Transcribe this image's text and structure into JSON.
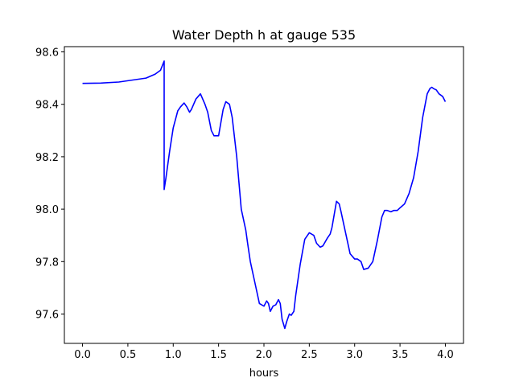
{
  "chart_data": {
    "type": "line",
    "title": "Water Depth h at gauge 535",
    "xlabel": "hours",
    "ylabel": "",
    "xlim": [
      -0.2,
      4.2
    ],
    "ylim": [
      97.488,
      98.62
    ],
    "x_ticks": [
      0.0,
      0.5,
      1.0,
      1.5,
      2.0,
      2.5,
      3.0,
      3.5,
      4.0
    ],
    "x_tick_labels": [
      "0.0",
      "0.5",
      "1.0",
      "1.5",
      "2.0",
      "2.5",
      "3.0",
      "3.5",
      "4.0"
    ],
    "y_ticks": [
      97.6,
      97.8,
      98.0,
      98.2,
      98.4,
      98.6
    ],
    "y_tick_labels": [
      "97.6",
      "97.8",
      "98.0",
      "98.2",
      "98.4",
      "98.6"
    ],
    "grid": false,
    "series": [
      {
        "name": "",
        "color": "#0000ff",
        "x": [
          0.0,
          0.2,
          0.4,
          0.6,
          0.7,
          0.8,
          0.86,
          0.9,
          0.9,
          0.92,
          0.96,
          1.0,
          1.05,
          1.08,
          1.12,
          1.15,
          1.18,
          1.2,
          1.25,
          1.3,
          1.35,
          1.38,
          1.42,
          1.45,
          1.5,
          1.55,
          1.58,
          1.62,
          1.65,
          1.7,
          1.75,
          1.8,
          1.82,
          1.85,
          1.9,
          1.95,
          2.0,
          2.03,
          2.05,
          2.07,
          2.1,
          2.13,
          2.16,
          2.18,
          2.2,
          2.23,
          2.25,
          2.28,
          2.3,
          2.33,
          2.35,
          2.4,
          2.45,
          2.5,
          2.55,
          2.58,
          2.62,
          2.65,
          2.7,
          2.73,
          2.75,
          2.8,
          2.83,
          2.85,
          2.9,
          2.95,
          3.0,
          3.03,
          3.07,
          3.1,
          3.15,
          3.2,
          3.25,
          3.3,
          3.33,
          3.36,
          3.4,
          3.43,
          3.47,
          3.5,
          3.55,
          3.6,
          3.65,
          3.7,
          3.75,
          3.8,
          3.83,
          3.85,
          3.87,
          3.9,
          3.93,
          3.97,
          4.0
        ],
        "y": [
          98.48,
          98.481,
          98.485,
          98.495,
          98.5,
          98.515,
          98.53,
          98.565,
          98.075,
          98.12,
          98.22,
          98.31,
          98.375,
          98.39,
          98.405,
          98.39,
          98.37,
          98.38,
          98.42,
          98.44,
          98.4,
          98.37,
          98.3,
          98.28,
          98.28,
          98.38,
          98.41,
          98.4,
          98.35,
          98.2,
          98.0,
          97.92,
          97.87,
          97.8,
          97.72,
          97.64,
          97.63,
          97.65,
          97.64,
          97.61,
          97.63,
          97.635,
          97.655,
          97.64,
          97.58,
          97.545,
          97.57,
          97.6,
          97.595,
          97.61,
          97.67,
          97.79,
          97.885,
          97.91,
          97.9,
          97.87,
          97.855,
          97.86,
          97.89,
          97.905,
          97.93,
          98.03,
          98.02,
          97.99,
          97.91,
          97.83,
          97.81,
          97.81,
          97.8,
          97.77,
          97.775,
          97.8,
          97.88,
          97.97,
          97.995,
          97.995,
          97.99,
          97.995,
          97.995,
          98.005,
          98.02,
          98.06,
          98.12,
          98.22,
          98.35,
          98.44,
          98.46,
          98.465,
          98.46,
          98.455,
          98.44,
          98.43,
          98.41
        ]
      }
    ]
  }
}
